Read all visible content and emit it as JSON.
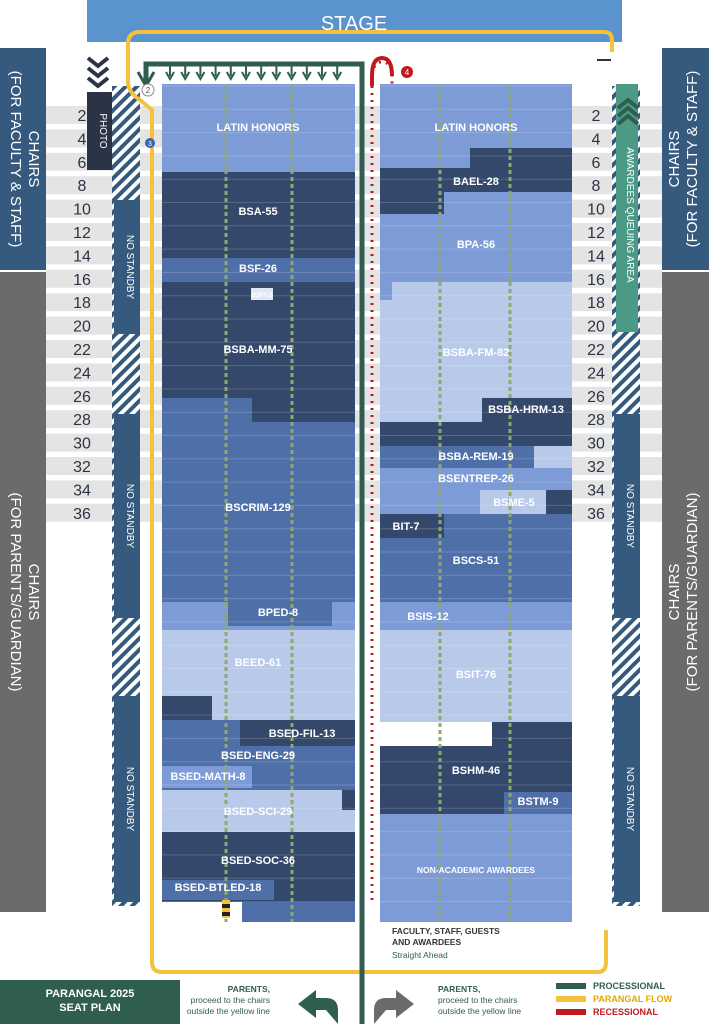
{
  "stage_label": "STAGE",
  "photo_label": "PHOTO",
  "chairs_faculty": "CHAIRS\n(FOR FACULTY & STAFF)",
  "chairs_parents": "CHAIRS\n(FOR PARENTS/GUARDIAN)",
  "no_standby": "NO STANDBY",
  "awardees_queue": "AWARDEES QUEUING AREA",
  "row_numbers": [
    "2",
    "4",
    "6",
    "8",
    "10",
    "12",
    "14",
    "16",
    "18",
    "20",
    "22",
    "24",
    "26",
    "28",
    "30",
    "32",
    "34",
    "36"
  ],
  "markers": [
    "2",
    "3",
    "4"
  ],
  "left_blocks": [
    "LATIN HONORS",
    "BSA-55",
    "BSF-26",
    "BSFT-2",
    "BSBA-MM-75",
    "BSCRIM-129",
    "BPED-8",
    "BEED-61",
    "BSED-FIL-13",
    "BSED-ENG-29",
    "BSED-MATH-8",
    "BSED-SCI-29",
    "BSED-SOC-36",
    "BSED-BTLED-18"
  ],
  "right_blocks": [
    "LATIN HONORS",
    "BAEL-28",
    "BPA-56",
    "BSBA-FM-82",
    "BSBA-HRM-13",
    "BSBA-REM-19",
    "BSENTREP-26",
    "BSME-5",
    "BIT-7",
    "BSCS-51",
    "BSIS-12",
    "BSIT-76",
    "BSHM-46",
    "BSTM-9",
    "NON-ACADEMIC AWARDEES"
  ],
  "faculty_note": "FACULTY, STAFF, GUESTS\nAND AWARDEES",
  "straight_ahead": "Straight Ahead",
  "parents_note": "PARENTS,\nproceed to the chairs\noutside the yellow line",
  "title": "PARANGAL 2025\nSEAT PLAN",
  "legend": [
    {
      "label": "PROCESSIONAL",
      "color": "#2f5d50"
    },
    {
      "label": "PARANGAL FLOW",
      "color": "#f3c13a"
    },
    {
      "label": "RECESSIONAL",
      "color": "#c01a1f"
    }
  ],
  "colors": {
    "dark": "#34486b",
    "mid": "#4f6fa8",
    "light": "#7d9bd6",
    "pale": "#b8c9ea",
    "side": "#36597e",
    "gray": "#6b6b6b",
    "stage": "#5a93cd"
  }
}
